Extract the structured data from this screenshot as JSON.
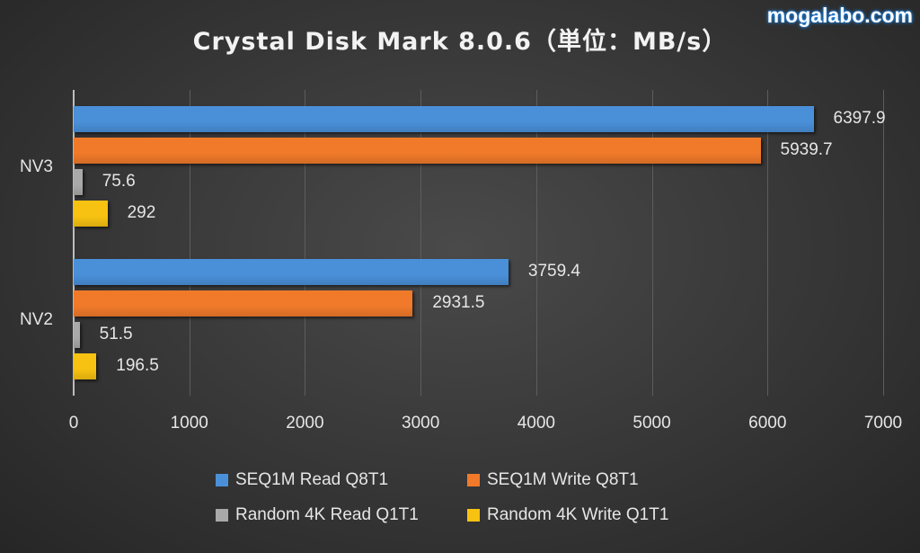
{
  "header": {
    "title": "Crystal Disk Mark 8.0.6（単位：MB/s）",
    "watermark": "mogalabo.com"
  },
  "colors": {
    "seq_read": "#4a90d9",
    "seq_write": "#f07a2a",
    "rnd_read": "#a9a9a9",
    "rnd_write": "#f7c211"
  },
  "chart_data": {
    "type": "bar",
    "orientation": "horizontal",
    "title": "Crystal Disk Mark 8.0.6（単位：MB/s）",
    "xlabel": "",
    "ylabel": "",
    "xlim": [
      0,
      7000
    ],
    "x_ticks": [
      "0",
      "1000",
      "2000",
      "3000",
      "4000",
      "5000",
      "6000",
      "7000"
    ],
    "grid": true,
    "legend_position": "bottom",
    "categories": [
      "NV3",
      "NV2"
    ],
    "series": [
      {
        "name": "SEQ1M Read Q8T1",
        "values": [
          6397.9,
          3759.4
        ]
      },
      {
        "name": "SEQ1M Write Q8T1",
        "values": [
          5939.7,
          2931.5
        ]
      },
      {
        "name": "Random 4K Read Q1T1",
        "values": [
          75.6,
          51.5
        ]
      },
      {
        "name": "Random 4K Write Q1T1",
        "values": [
          292,
          196.5
        ]
      }
    ],
    "data_labels": {
      "NV3": [
        "6397.9",
        "5939.7",
        "75.6",
        "292"
      ],
      "NV2": [
        "3759.4",
        "2931.5",
        "51.5",
        "196.5"
      ]
    }
  }
}
